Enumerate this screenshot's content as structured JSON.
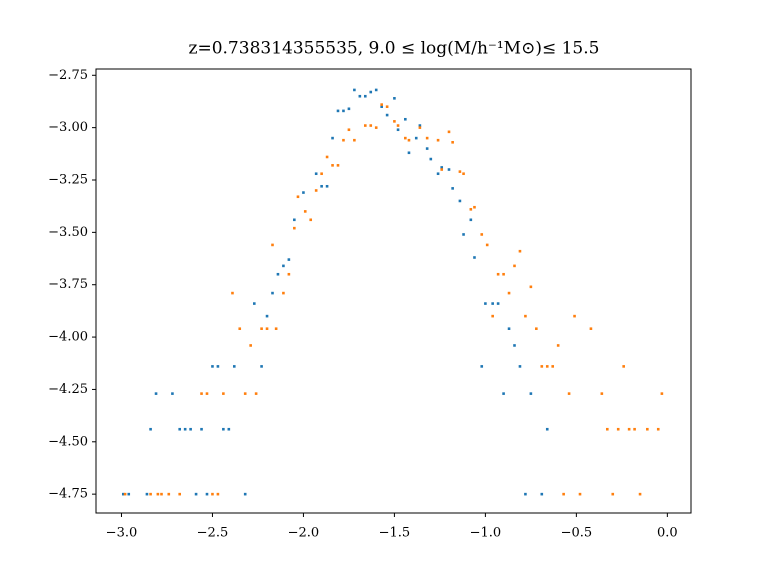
{
  "chart_data": {
    "type": "scatter",
    "title": "z=0.738314355535, 9.0 ≤ log(M/h⁻¹M⊙)≤ 15.5",
    "xlim": [
      -3.14,
      0.13
    ],
    "ylim": [
      -4.84,
      -2.72
    ],
    "xticks": [
      {
        "value": -3,
        "label": "−3.0"
      },
      {
        "value": -2.5,
        "label": "−2.5"
      },
      {
        "value": -2,
        "label": "−2.0"
      },
      {
        "value": -1.5,
        "label": "−1.5"
      },
      {
        "value": -1,
        "label": "−1.0"
      },
      {
        "value": -0.5,
        "label": "−0.5"
      },
      {
        "value": 0,
        "label": "0.0"
      }
    ],
    "yticks": [
      {
        "value": -2.75,
        "label": "−2.75"
      },
      {
        "value": -3,
        "label": "−3.00"
      },
      {
        "value": -3.25,
        "label": "−3.25"
      },
      {
        "value": -3.5,
        "label": "−3.50"
      },
      {
        "value": -3.75,
        "label": "−3.75"
      },
      {
        "value": -4,
        "label": "−4.00"
      },
      {
        "value": -4.25,
        "label": "−4.25"
      },
      {
        "value": -4.5,
        "label": "−4.50"
      },
      {
        "value": -4.75,
        "label": "−4.75"
      }
    ],
    "series": [
      {
        "color": "#1f77b4",
        "x": [
          -2.99,
          -2.96,
          -2.86,
          -2.84,
          -2.81,
          -2.72,
          -2.68,
          -2.65,
          -2.62,
          -2.59,
          -2.56,
          -2.53,
          -2.5,
          -2.47,
          -2.44,
          -2.41,
          -2.38,
          -2.32,
          -2.27,
          -2.23,
          -2.2,
          -2.17,
          -2.14,
          -2.11,
          -2.08,
          -2.05,
          -2.0,
          -1.93,
          -1.9,
          -1.87,
          -1.84,
          -1.81,
          -1.78,
          -1.75,
          -1.72,
          -1.69,
          -1.66,
          -1.63,
          -1.6,
          -1.57,
          -1.54,
          -1.5,
          -1.48,
          -1.44,
          -1.42,
          -1.38,
          -1.36,
          -1.32,
          -1.3,
          -1.26,
          -1.24,
          -1.2,
          -1.18,
          -1.14,
          -1.12,
          -1.08,
          -1.06,
          -1.02,
          -1.0,
          -0.96,
          -0.93,
          -0.9,
          -0.87,
          -0.84,
          -0.81,
          -0.78,
          -0.75,
          -0.69,
          -0.66
        ],
        "values": [
          -4.75,
          -4.75,
          -4.75,
          -4.44,
          -4.27,
          -4.27,
          -4.44,
          -4.44,
          -4.44,
          -4.75,
          -4.44,
          -4.75,
          -4.14,
          -4.14,
          -4.44,
          -4.44,
          -4.14,
          -4.75,
          -3.84,
          -4.14,
          -3.9,
          -3.79,
          -3.7,
          -3.66,
          -3.63,
          -3.44,
          -3.31,
          -3.22,
          -3.28,
          -3.28,
          -3.05,
          -2.92,
          -2.92,
          -2.91,
          -2.82,
          -2.85,
          -2.85,
          -2.83,
          -2.82,
          -2.9,
          -2.94,
          -2.86,
          -3.01,
          -2.96,
          -3.12,
          -3.05,
          -2.99,
          -3.1,
          -3.15,
          -3.22,
          -3.19,
          -3.2,
          -3.29,
          -3.35,
          -3.51,
          -3.44,
          -3.62,
          -4.14,
          -3.84,
          -3.84,
          -3.84,
          -4.27,
          -3.96,
          -4.04,
          -4.14,
          -4.75,
          -4.27,
          -4.75,
          -4.44
        ]
      },
      {
        "color": "#ff7f0e",
        "x": [
          -2.98,
          -2.84,
          -2.8,
          -2.78,
          -2.74,
          -2.68,
          -2.56,
          -2.53,
          -2.5,
          -2.47,
          -2.44,
          -2.39,
          -2.35,
          -2.32,
          -2.29,
          -2.26,
          -2.23,
          -2.2,
          -2.17,
          -2.15,
          -2.11,
          -2.08,
          -2.05,
          -2.03,
          -1.99,
          -1.96,
          -1.93,
          -1.9,
          -1.87,
          -1.84,
          -1.81,
          -1.78,
          -1.75,
          -1.72,
          -1.66,
          -1.63,
          -1.6,
          -1.57,
          -1.54,
          -1.5,
          -1.48,
          -1.44,
          -1.42,
          -1.36,
          -1.32,
          -1.26,
          -1.24,
          -1.2,
          -1.18,
          -1.14,
          -1.12,
          -1.08,
          -1.06,
          -1.02,
          -0.99,
          -0.96,
          -0.93,
          -0.9,
          -0.87,
          -0.84,
          -0.81,
          -0.78,
          -0.75,
          -0.72,
          -0.69,
          -0.66,
          -0.63,
          -0.6,
          -0.57,
          -0.54,
          -0.51,
          -0.48,
          -0.42,
          -0.36,
          -0.33,
          -0.3,
          -0.27,
          -0.24,
          -0.21,
          -0.18,
          -0.15,
          -0.11,
          -0.05,
          -0.03
        ],
        "values": [
          -4.75,
          -4.75,
          -4.75,
          -4.75,
          -4.75,
          -4.75,
          -4.27,
          -4.27,
          -4.75,
          -4.75,
          -4.27,
          -3.79,
          -3.96,
          -4.27,
          -4.04,
          -4.27,
          -3.96,
          -3.96,
          -3.56,
          -3.96,
          -3.79,
          -3.7,
          -3.48,
          -3.33,
          -3.4,
          -3.44,
          -3.3,
          -3.22,
          -3.14,
          -3.18,
          -3.18,
          -3.06,
          -3.01,
          -3.06,
          -2.99,
          -2.99,
          -3.0,
          -2.89,
          -2.9,
          -2.97,
          -2.99,
          -3.05,
          -3.06,
          -3.0,
          -3.05,
          -3.06,
          -3.2,
          -3.02,
          -3.07,
          -3.21,
          -3.22,
          -3.39,
          -3.38,
          -3.51,
          -3.56,
          -3.9,
          -3.7,
          -3.7,
          -3.79,
          -3.66,
          -3.59,
          -3.9,
          -3.76,
          -3.96,
          -4.14,
          -4.14,
          -4.14,
          -4.04,
          -4.75,
          -4.27,
          -3.9,
          -4.75,
          -3.96,
          -4.27,
          -4.44,
          -4.75,
          -4.44,
          -4.14,
          -4.44,
          -4.44,
          -4.75,
          -4.44,
          -4.44,
          -4.27
        ]
      }
    ]
  }
}
